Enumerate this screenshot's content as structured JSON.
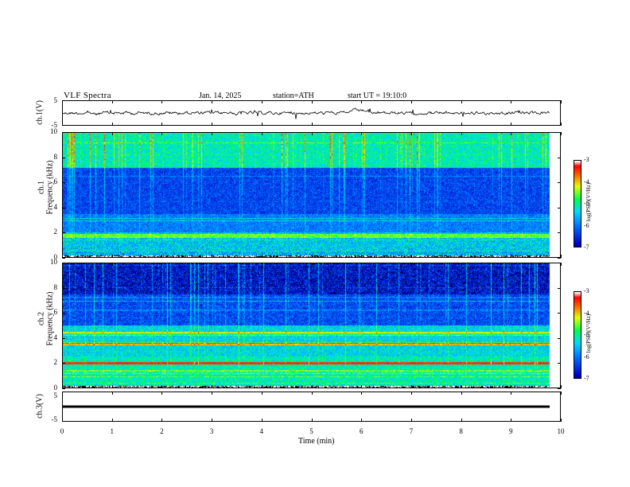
{
  "header": {
    "title": "VLF Spectra",
    "date": "Jan. 14, 2025",
    "station": "station=ATH",
    "start": "start UT = 19:10:0"
  },
  "chart_data": [
    {
      "type": "line",
      "ylabel": "ch.1(V)",
      "ylim": [
        -5,
        5
      ],
      "yticks": [
        "5",
        "-5"
      ],
      "xlim": [
        0,
        10
      ]
    },
    {
      "type": "heatmap",
      "ylabel": "ch.1\nFrequency (kHz)",
      "ylabel_top": "ch.1",
      "ylabel_bottom": "Frequency (kHz)",
      "ylim": [
        0,
        10
      ],
      "yticks": [
        "0",
        "2",
        "4",
        "6",
        "8",
        "10"
      ],
      "colorbar": {
        "label": "log(PSD)(V²/Hz)",
        "ticks": [
          "-3",
          "-4",
          "-5",
          "-6",
          "-7"
        ],
        "range": [
          -7,
          -3
        ]
      }
    },
    {
      "type": "heatmap",
      "ylabel_top": "ch.2",
      "ylabel_bottom": "Frequency (kHz)",
      "ylim": [
        0,
        10
      ],
      "yticks": [
        "0",
        "2",
        "4",
        "6",
        "8",
        "10"
      ],
      "colorbar": {
        "label": "log(PSD)(V²/Hz)",
        "ticks": [
          "-3",
          "-4",
          "-5",
          "-6",
          "-7"
        ],
        "range": [
          -7,
          -3
        ]
      }
    },
    {
      "type": "line",
      "ylabel": "ch.3(V)",
      "ylim": [
        -5,
        5
      ],
      "yticks": [
        "5",
        "-5"
      ]
    }
  ],
  "xaxis": {
    "label": "Time (min)",
    "ticks": [
      "0",
      "1",
      "2",
      "3",
      "4",
      "5",
      "6",
      "7",
      "8",
      "9",
      "10"
    ],
    "range": [
      0,
      10
    ]
  },
  "colors": {
    "scale": [
      "#000000",
      "#0000c8",
      "#0070ff",
      "#00e0ff",
      "#00ff40",
      "#ffff00",
      "#ff4000",
      "#ff0000",
      "#ffffff"
    ]
  }
}
